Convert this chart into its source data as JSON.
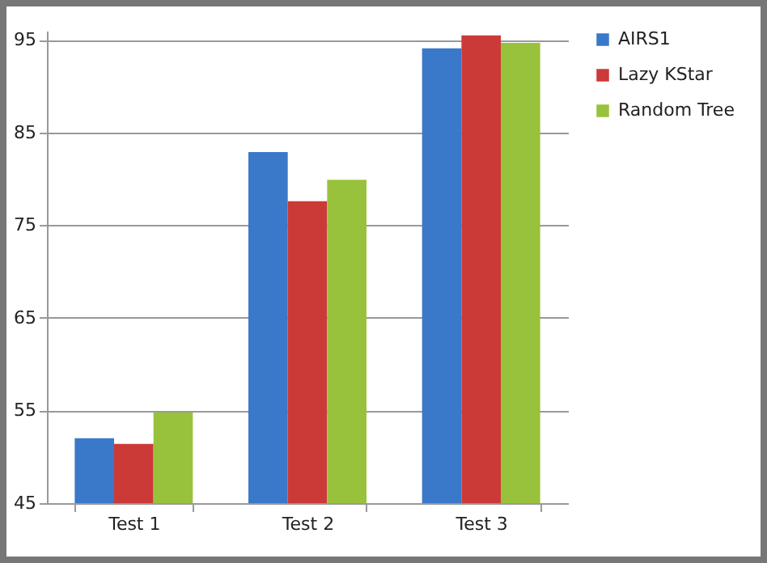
{
  "chart_data": {
    "type": "bar",
    "categories": [
      "Test 1",
      "Test 2",
      "Test 3"
    ],
    "series": [
      {
        "name": "AIRS1",
        "color": "#3a78c9",
        "values": [
          52.0,
          82.9,
          94.1
        ]
      },
      {
        "name": "Lazy KStar",
        "color": "#cc3a38",
        "values": [
          51.4,
          77.6,
          95.5
        ]
      },
      {
        "name": "Random Tree",
        "color": "#98c23c",
        "values": [
          54.8,
          79.9,
          94.7
        ]
      }
    ],
    "ylim": [
      45,
      96
    ],
    "yticks": [
      45,
      55,
      65,
      75,
      85,
      95
    ],
    "grid": "y",
    "legend": "right"
  }
}
